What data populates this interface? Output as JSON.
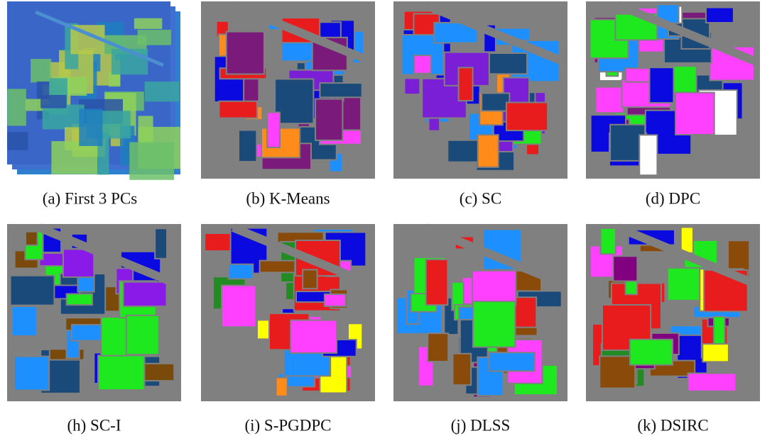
{
  "figure": {
    "panels": [
      {
        "caption": "(a) First 3 PCs"
      },
      {
        "caption": "(b) K-Means"
      },
      {
        "caption": "(c) SC"
      },
      {
        "caption": "(d) DPC"
      },
      {
        "caption": "(h) SC-I"
      },
      {
        "caption": "(i) S-PGDPC"
      },
      {
        "caption": "(j) DLSS"
      },
      {
        "caption": "(k) DSIRC"
      }
    ]
  }
}
